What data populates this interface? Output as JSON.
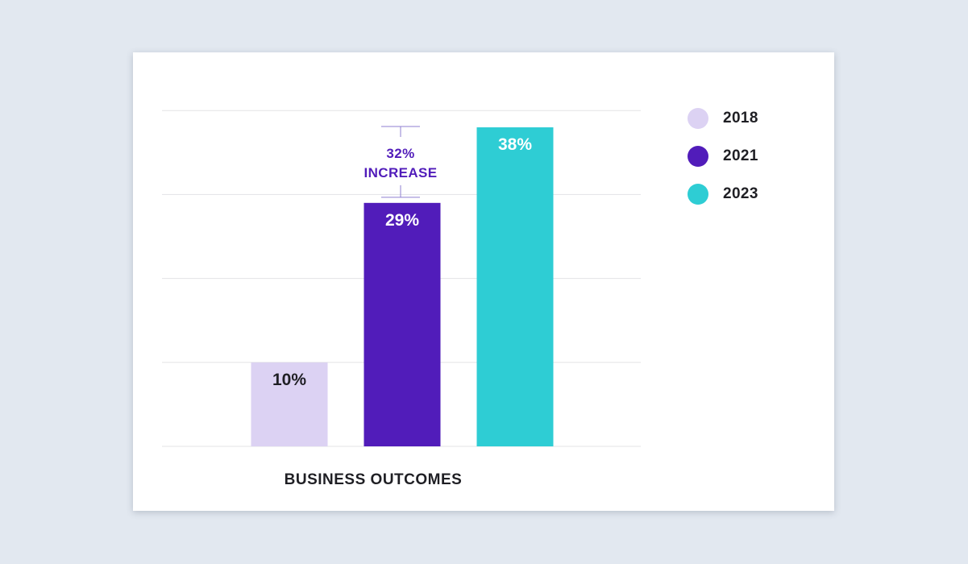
{
  "chart_data": {
    "type": "bar",
    "title": "",
    "xlabel": "BUSINESS OUTCOMES",
    "ylabel": "",
    "ylim": [
      0,
      40
    ],
    "grid": true,
    "legend_position": "right",
    "categories": [
      "2018",
      "2021",
      "2023"
    ],
    "values": [
      10,
      29,
      38
    ],
    "value_labels": [
      "10%",
      "29%",
      "38%"
    ],
    "colors": [
      "#dcd2f3",
      "#511cba",
      "#2ecdd4"
    ],
    "label_colors": [
      "#1f1f24",
      "#ffffff",
      "#ffffff"
    ],
    "annotation": {
      "line1": "32%",
      "line2": "INCREASE",
      "color": "#511cba",
      "bracket_color": "#8f7fd1",
      "from_value": 29,
      "to_value": 38
    }
  },
  "legend": {
    "items": [
      {
        "label": "2018",
        "color": "#dcd2f3"
      },
      {
        "label": "2021",
        "color": "#511cba"
      },
      {
        "label": "2023",
        "color": "#2ecdd4"
      }
    ]
  }
}
